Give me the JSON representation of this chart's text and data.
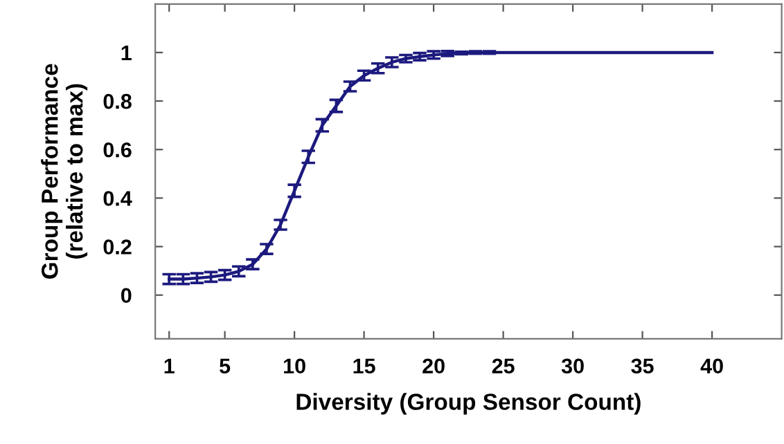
{
  "chart_data": {
    "type": "line",
    "xlabel": "Diversity (Group Sensor Count)",
    "ylabel": "Group Performance\n(relative to max)",
    "x": [
      1,
      2,
      3,
      4,
      5,
      6,
      7,
      8,
      9,
      10,
      11,
      12,
      13,
      14,
      15,
      16,
      17,
      18,
      19,
      20,
      21,
      22,
      23,
      24,
      25,
      26,
      27,
      28,
      29,
      30,
      31,
      32,
      33,
      34,
      35,
      36,
      37,
      38,
      39,
      40
    ],
    "series": [
      {
        "color": "#1c1a7e",
        "values": [
          0.066,
          0.066,
          0.07,
          0.075,
          0.083,
          0.098,
          0.127,
          0.19,
          0.29,
          0.43,
          0.57,
          0.7,
          0.78,
          0.86,
          0.905,
          0.935,
          0.96,
          0.975,
          0.983,
          0.99,
          0.996,
          0.998,
          1.0,
          1.0,
          1.0,
          1.0,
          1.0,
          1.0,
          1.0,
          1.0,
          1.0,
          1.0,
          1.0,
          1.0,
          1.0,
          1.0,
          1.0,
          1.0,
          1.0,
          1.0
        ],
        "errors": [
          0.02,
          0.02,
          0.02,
          0.02,
          0.02,
          0.02,
          0.02,
          0.02,
          0.02,
          0.025,
          0.025,
          0.025,
          0.025,
          0.02,
          0.02,
          0.02,
          0.02,
          0.015,
          0.015,
          0.015,
          0.01,
          0.005,
          0.005,
          0.005,
          null,
          null,
          null,
          null,
          null,
          null,
          null,
          null,
          null,
          null,
          null,
          null,
          null,
          null,
          null,
          null
        ]
      }
    ],
    "xlim": [
      0,
      45
    ],
    "xticks": [
      1,
      5,
      10,
      15,
      20,
      25,
      30,
      35,
      40
    ],
    "ylim": [
      -0.18,
      1.2
    ],
    "yticks": [
      0,
      0.2,
      0.4,
      0.6,
      0.8,
      1
    ],
    "grid": false,
    "legend": false,
    "marker": "none",
    "line_style": "solid"
  }
}
